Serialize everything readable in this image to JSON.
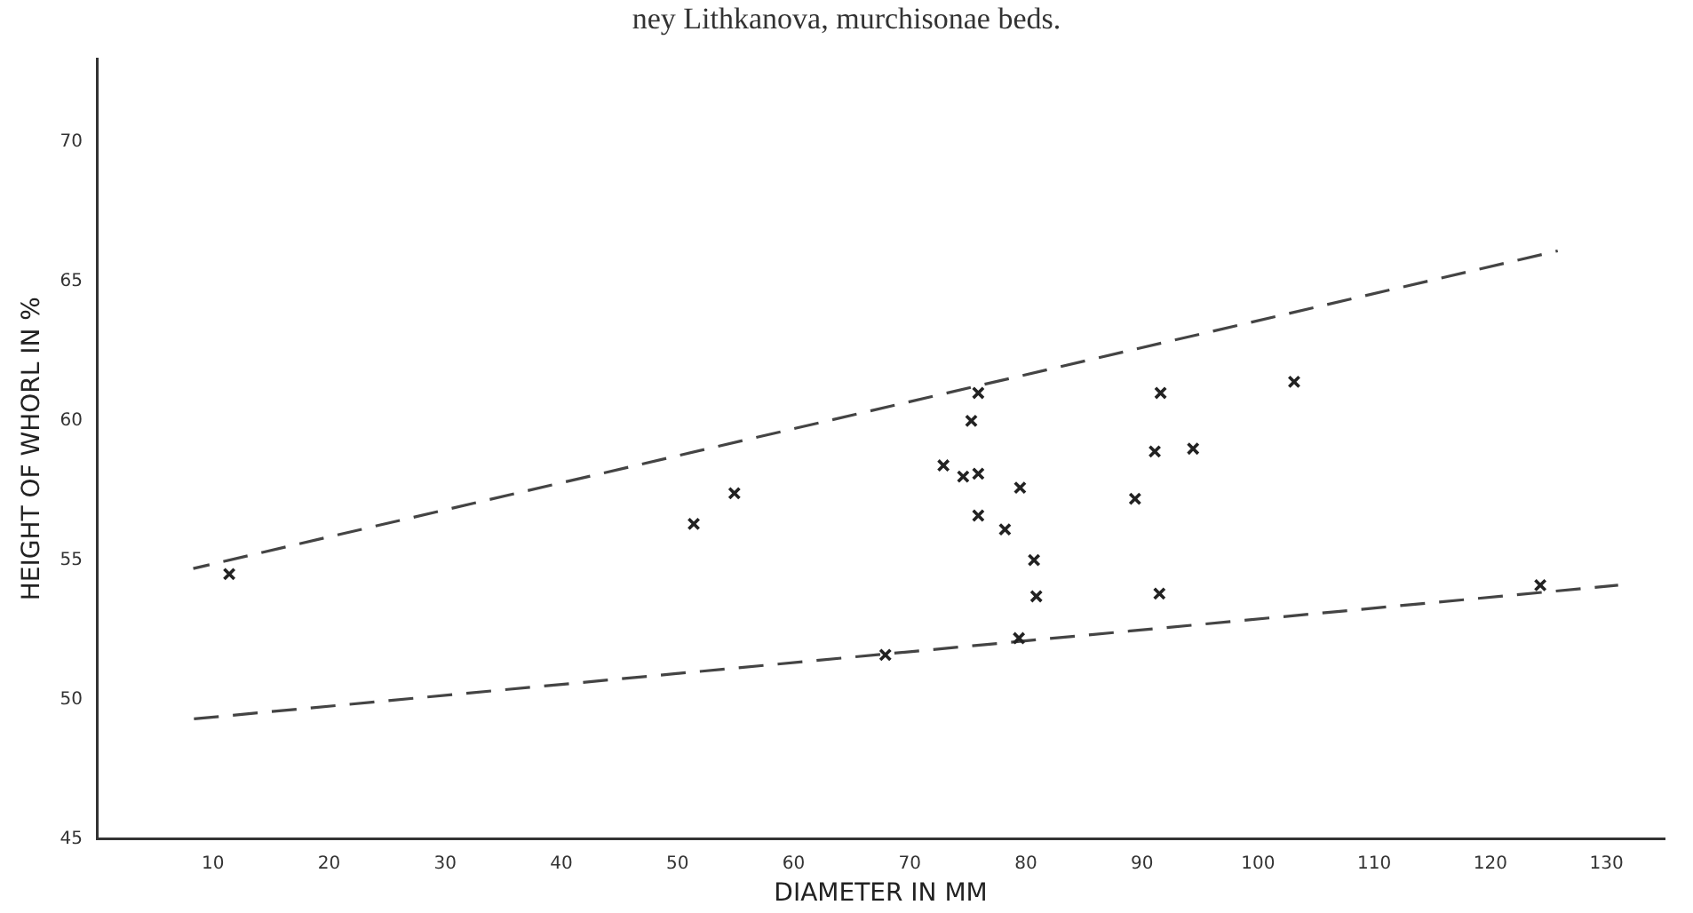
{
  "chart_data": {
    "type": "scatter",
    "title": "ney Lithkanova, murchisonae beds.",
    "xlabel": "DIAMETER IN MM",
    "ylabel": "HEIGHT OF WHORL IN %",
    "xlim": [
      0,
      135
    ],
    "xticks": [
      10,
      20,
      30,
      40,
      50,
      60,
      70,
      80,
      90,
      100,
      110,
      120,
      130
    ],
    "ylim": [
      45,
      73
    ],
    "yticks": [
      45,
      50,
      55,
      60,
      65,
      70
    ],
    "grid": false,
    "legend": false,
    "marker": "cross",
    "series": [
      {
        "type": "scatter",
        "color": "#222222",
        "x": [
          11.4,
          51.4,
          54.9,
          75.9,
          75.3,
          72.9,
          74.6,
          75.9,
          79.5,
          75.9,
          78.2,
          80.7,
          80.9,
          79.4,
          67.9,
          91.6,
          91.1,
          94.4,
          89.4,
          91.5,
          103.1,
          124.3
        ],
        "values": [
          54.5,
          56.3,
          57.4,
          61.0,
          60.0,
          58.4,
          58.0,
          58.1,
          57.6,
          56.6,
          56.1,
          55.0,
          53.7,
          52.2,
          51.6,
          61.0,
          58.9,
          59.0,
          57.2,
          53.8,
          61.4,
          54.1
        ]
      },
      {
        "type": "line",
        "color": "#444444",
        "line_style": "dashed",
        "marker": "none",
        "x": [
          8.3,
          125.8
        ],
        "values": [
          54.7,
          66.1
        ]
      },
      {
        "type": "line",
        "color": "#444444",
        "line_style": "dashed",
        "marker": "none",
        "x": [
          8.3,
          131
        ],
        "values": [
          49.3,
          54.1
        ]
      }
    ]
  }
}
